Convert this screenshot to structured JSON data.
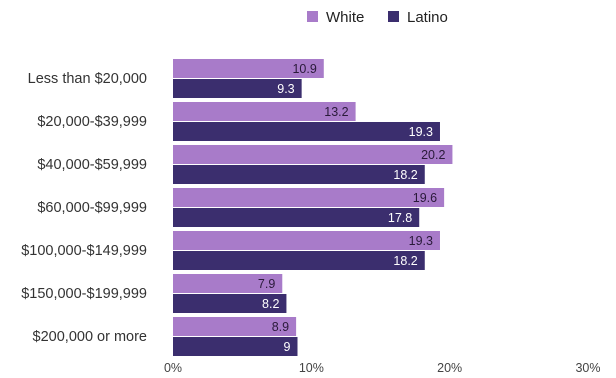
{
  "chart_data": {
    "type": "bar",
    "orientation": "horizontal",
    "categories": [
      "Less than $20,000",
      "$20,000-$39,999",
      "$40,000-$59,999",
      "$60,000-$99,999",
      "$100,000-$149,999",
      "$150,000-$199,999",
      "$200,000 or more"
    ],
    "series": [
      {
        "name": "White",
        "color": "#a87bc9",
        "values": [
          10.9,
          13.2,
          20.2,
          19.6,
          19.3,
          7.9,
          8.9
        ]
      },
      {
        "name": "Latino",
        "color": "#3b2e6e",
        "values": [
          9.3,
          19.3,
          18.2,
          17.8,
          18.2,
          8.2,
          9
        ]
      }
    ],
    "x_ticks": [
      "0%",
      "10%",
      "20%",
      "30%"
    ],
    "xlim": [
      0,
      30
    ],
    "legend_position": "top-right",
    "grid": false
  }
}
